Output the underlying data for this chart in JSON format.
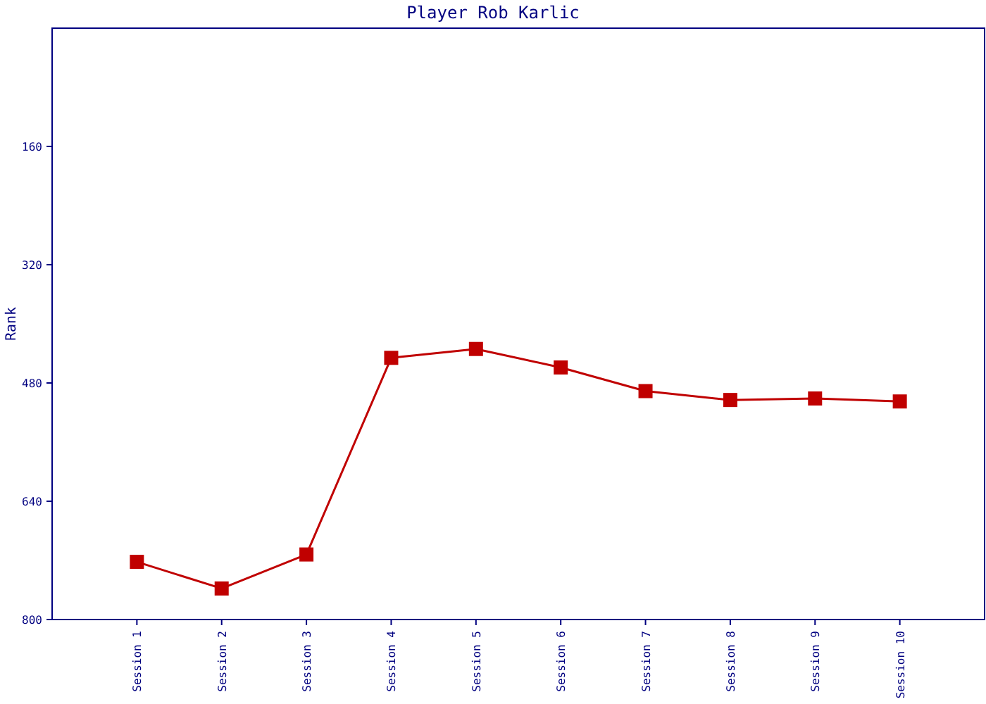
{
  "chart_data": {
    "type": "line",
    "title": "Player Rob Karlic",
    "ylabel": "Rank",
    "categories": [
      "Session 1",
      "Session 2",
      "Session 3",
      "Session 4",
      "Session 5",
      "Session 6",
      "Session 7",
      "Session 8",
      "Session 9",
      "Session 10"
    ],
    "series": [
      {
        "color": "#c00000",
        "values": [
          722,
          758,
          712,
          446,
          434,
          459,
          491,
          503,
          501,
          505
        ]
      }
    ],
    "ylim": [
      800,
      0
    ],
    "yticks": [
      160,
      320,
      480,
      640,
      800
    ],
    "grid": false,
    "marker": "square",
    "line_style": "solid"
  }
}
